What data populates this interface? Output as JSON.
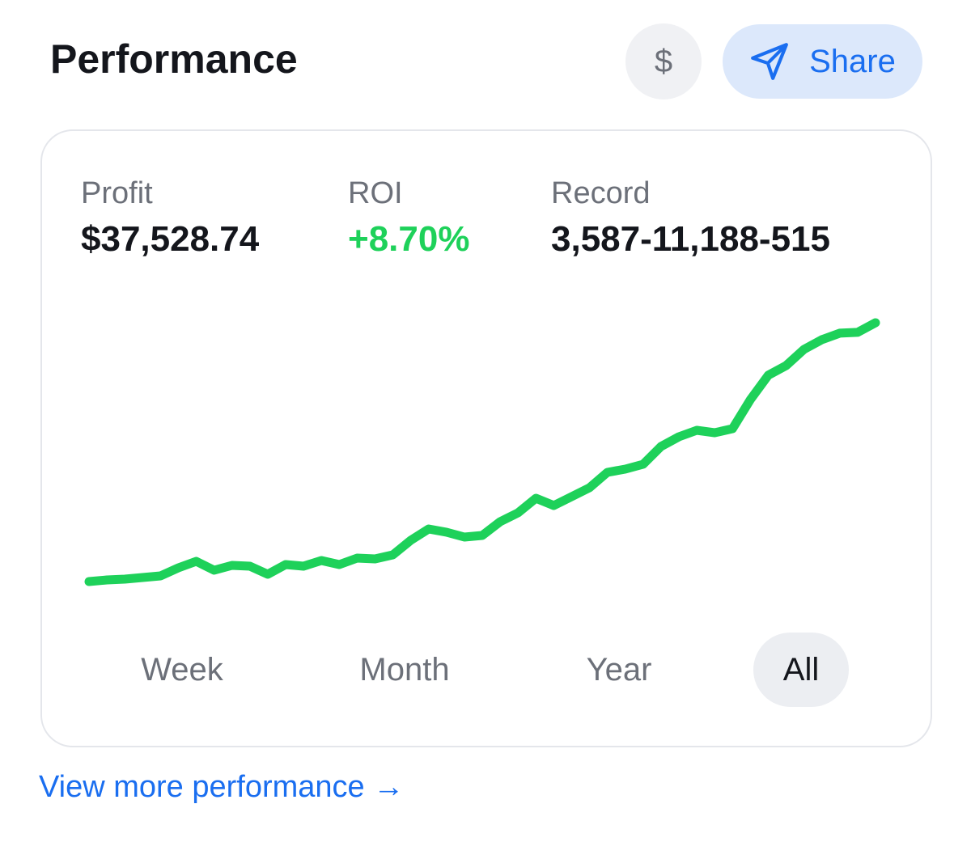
{
  "header": {
    "title": "Performance",
    "currency_button": "$",
    "share_button": "Share"
  },
  "stats": [
    {
      "label": "Profit",
      "value": "$37,528.74"
    },
    {
      "label": "ROI",
      "value": "+8.70%"
    },
    {
      "label": "Record",
      "value": "3,587-11,188-515"
    }
  ],
  "chart_data": {
    "type": "line",
    "color": "#1ed15a",
    "ylim": [
      0,
      37529
    ],
    "values": [
      0,
      235,
      352,
      587,
      821,
      1994,
      2933,
      1642,
      2346,
      2229,
      1056,
      2463,
      2229,
      3050,
      2463,
      3402,
      3284,
      3871,
      5982,
      7625,
      7155,
      6452,
      6686,
      8680,
      9971,
      12082,
      11026,
      12317,
      13607,
      15836,
      16305,
      17009,
      19589,
      20997,
      21935,
      21583,
      22170,
      26393,
      29912,
      31319,
      33665,
      35073,
      36011,
      36128,
      37529
    ]
  },
  "tabs": [
    "Week",
    "Month",
    "Year",
    "All"
  ],
  "selected_tab": 3,
  "link": "View more performance →"
}
